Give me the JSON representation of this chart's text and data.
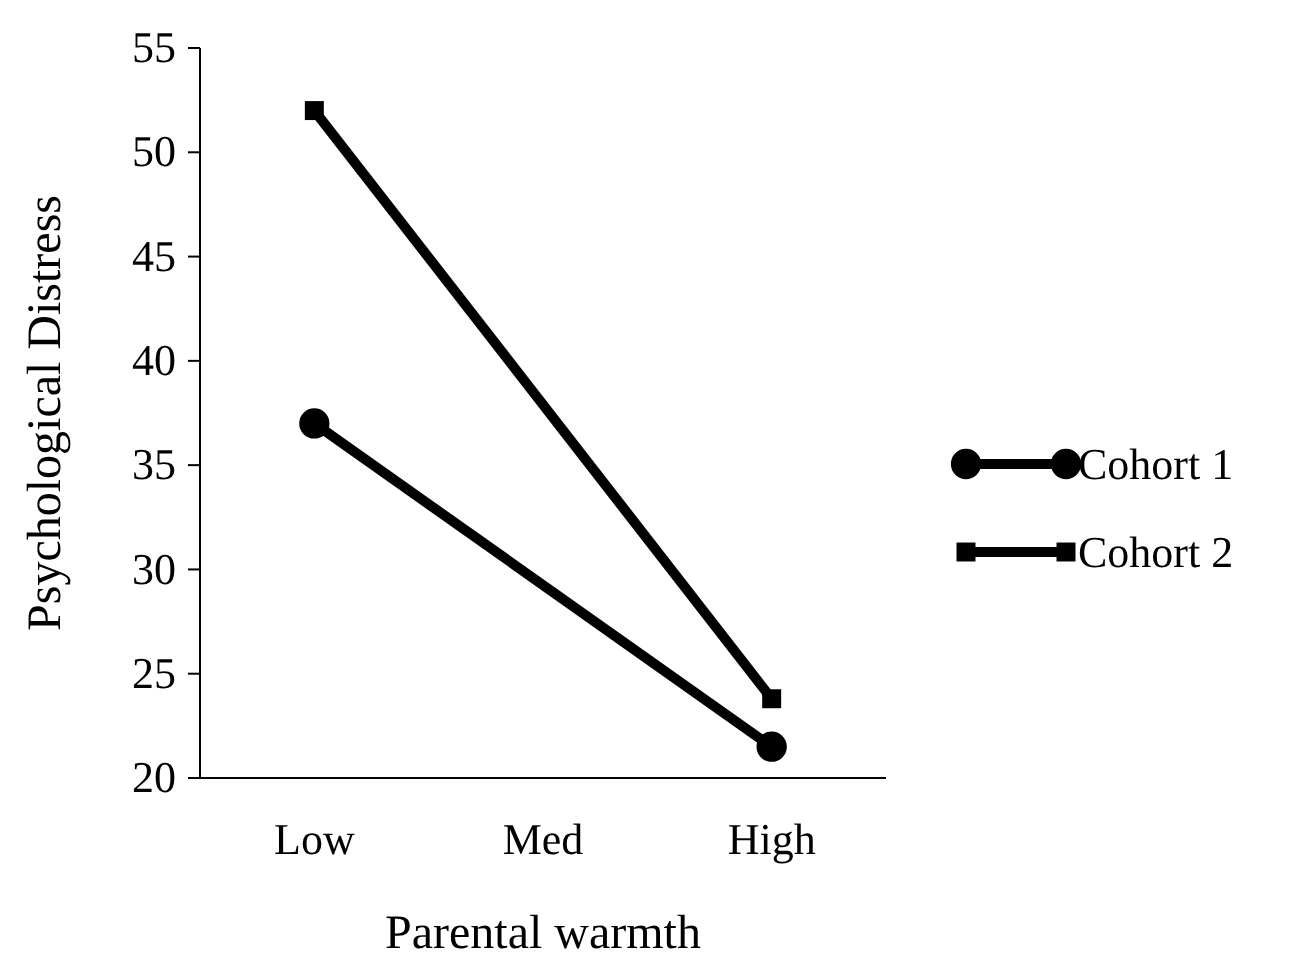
{
  "chart_data": {
    "type": "line",
    "xlabel": "Parental warmth",
    "ylabel": "Psychological Distress",
    "categories": [
      "Low",
      "Med",
      "High"
    ],
    "series": [
      {
        "name": "Cohort 1",
        "color": "#000000",
        "marker": "circle",
        "values": [
          37,
          null,
          21.5
        ]
      },
      {
        "name": "Cohort 2",
        "color": "#000000",
        "marker": "square",
        "values": [
          52,
          null,
          23.8
        ]
      }
    ],
    "ylim": [
      20,
      55
    ],
    "yticks": [
      20,
      25,
      30,
      35,
      40,
      45,
      50,
      55
    ],
    "legend": "right",
    "grid": false,
    "line_style": "solid"
  }
}
